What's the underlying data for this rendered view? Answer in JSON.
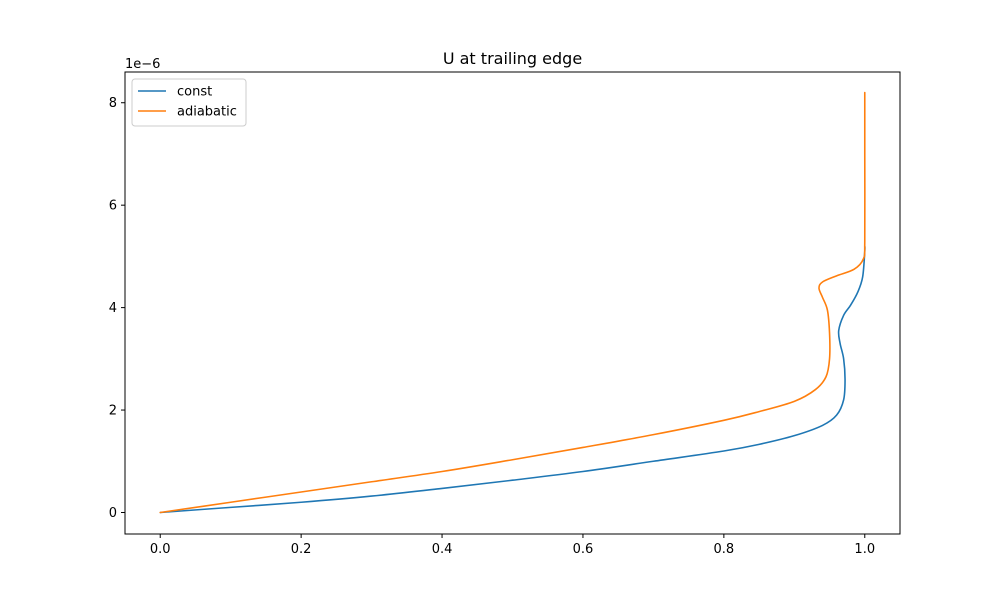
{
  "chart_data": {
    "type": "line",
    "title": "U at trailing edge",
    "xlabel": "",
    "ylabel": "",
    "y_offset_label": "1e−6",
    "xlim": [
      -0.05,
      1.05
    ],
    "ylim": [
      -0.42,
      8.6
    ],
    "y_scale_exponent": -6,
    "x_ticks": [
      0.0,
      0.2,
      0.4,
      0.6,
      0.8,
      1.0
    ],
    "x_tick_labels": [
      "0.0",
      "0.2",
      "0.4",
      "0.6",
      "0.8",
      "1.0"
    ],
    "y_ticks": [
      0,
      2,
      4,
      6,
      8
    ],
    "y_tick_labels": [
      "0",
      "2",
      "4",
      "6",
      "8"
    ],
    "grid": false,
    "legend_position": "upper-left",
    "series": [
      {
        "name": "const",
        "color": "#1f77b4",
        "x": [
          0.0,
          0.1,
          0.2,
          0.3,
          0.4,
          0.5,
          0.6,
          0.7,
          0.8,
          0.85,
          0.9,
          0.94,
          0.96,
          0.97,
          0.972,
          0.97,
          0.965,
          0.963,
          0.97,
          0.98,
          0.99,
          0.997,
          1.0,
          1.0
        ],
        "y": [
          0.0,
          0.1,
          0.2,
          0.32,
          0.47,
          0.63,
          0.8,
          1.0,
          1.2,
          1.33,
          1.5,
          1.7,
          1.9,
          2.2,
          2.6,
          3.0,
          3.3,
          3.55,
          3.85,
          4.05,
          4.3,
          4.6,
          5.1,
          5.2
        ]
      },
      {
        "name": "adiabatic",
        "color": "#ff7f0e",
        "x": [
          0.0,
          0.1,
          0.2,
          0.3,
          0.4,
          0.5,
          0.6,
          0.7,
          0.8,
          0.85,
          0.9,
          0.93,
          0.945,
          0.95,
          0.95,
          0.947,
          0.94,
          0.935,
          0.94,
          0.96,
          0.985,
          0.998,
          1.0,
          1.0,
          1.0
        ],
        "y": [
          0.0,
          0.2,
          0.4,
          0.6,
          0.8,
          1.03,
          1.27,
          1.52,
          1.8,
          1.97,
          2.17,
          2.4,
          2.65,
          3.0,
          3.5,
          3.95,
          4.2,
          4.38,
          4.5,
          4.62,
          4.75,
          4.95,
          5.3,
          7.0,
          8.2
        ]
      }
    ]
  }
}
